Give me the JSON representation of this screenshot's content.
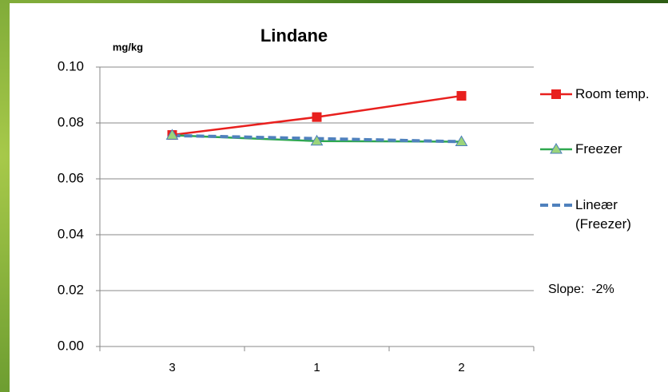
{
  "chart_data": {
    "type": "line",
    "title": "Lindane",
    "y_label": "mg/kg",
    "categories": [
      "3",
      "1",
      "2"
    ],
    "series": [
      {
        "name": "Room temp.",
        "color": "#e8201e",
        "marker": "square",
        "values": [
          0.0757,
          0.0821,
          0.0897
        ]
      },
      {
        "name": "Freezer",
        "color": "#2ea84f",
        "marker": "triangle",
        "marker_fill": "#9bd47a",
        "marker_edge": "#4a7ebb",
        "values": [
          0.0756,
          0.0735,
          0.0733
        ]
      },
      {
        "name": "Lineær (Freezer)",
        "color": "#4f81bd",
        "dashed": true,
        "values": [
          0.0755,
          0.0744,
          0.0733
        ]
      }
    ],
    "ylim": [
      0,
      0.1
    ],
    "yticks": [
      {
        "value": 0,
        "label": "0.00"
      },
      {
        "value": 0.02,
        "label": "0.02"
      },
      {
        "value": 0.04,
        "label": "0.04"
      },
      {
        "value": 0.06,
        "label": "0.06"
      },
      {
        "value": 0.08,
        "label": "0.08"
      },
      {
        "value": 0.1,
        "label": "0.10"
      }
    ],
    "grid": true,
    "annotation": "Slope:  -2%"
  }
}
